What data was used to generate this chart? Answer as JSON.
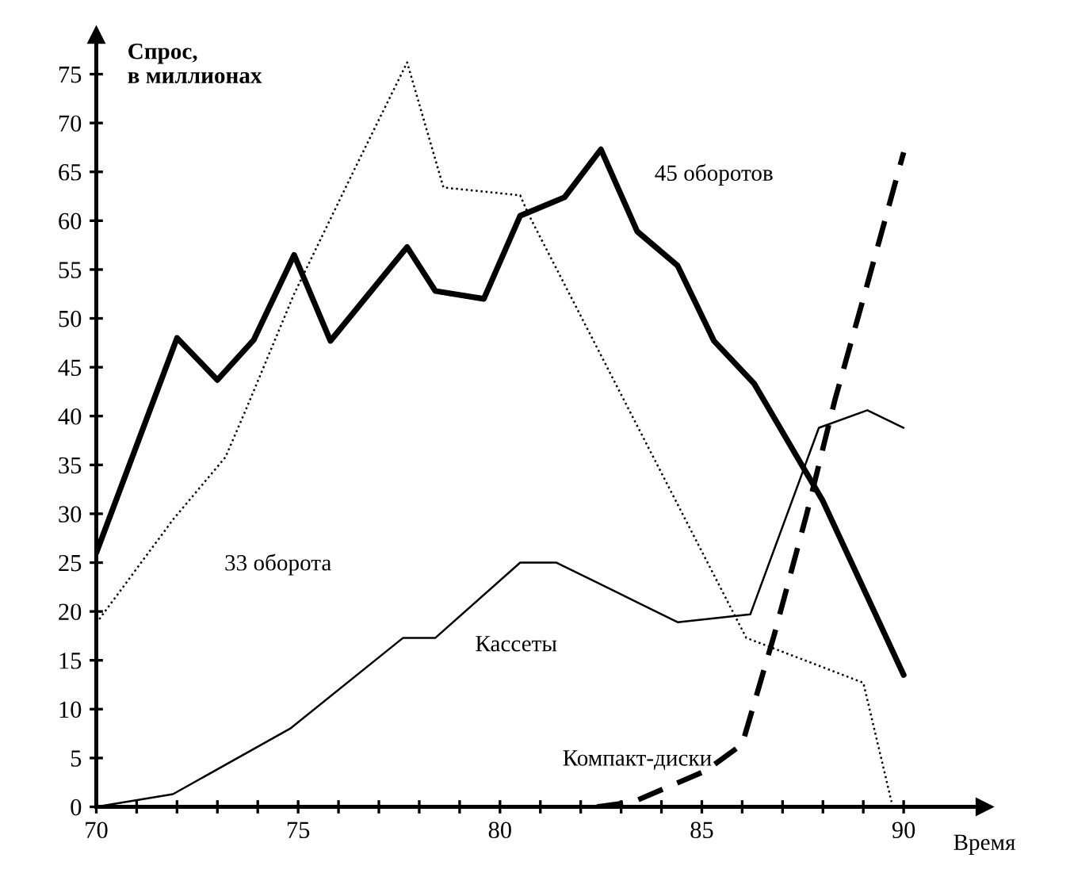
{
  "chart_data": {
    "type": "line",
    "xlabel": "Время",
    "ylabel": "Спрос,\nв миллионах",
    "xlim": [
      70,
      92
    ],
    "ylim": [
      0,
      79
    ],
    "xticks": [
      70,
      {
        "value": 71,
        "label": null
      },
      {
        "value": 72,
        "label": null
      },
      {
        "value": 73,
        "label": null
      },
      {
        "value": 74,
        "label": null
      },
      75,
      {
        "value": 76,
        "label": null
      },
      {
        "value": 77,
        "label": null
      },
      {
        "value": 78,
        "label": null
      },
      {
        "value": 79,
        "label": null
      },
      80,
      {
        "value": 81,
        "label": null
      },
      {
        "value": 82,
        "label": null
      },
      {
        "value": 83,
        "label": null
      },
      {
        "value": 84,
        "label": null
      },
      85,
      {
        "value": 86,
        "label": null
      },
      {
        "value": 87,
        "label": null
      },
      {
        "value": 88,
        "label": null
      },
      {
        "value": 89,
        "label": null
      },
      90
    ],
    "yticks": [
      0,
      5,
      10,
      15,
      20,
      25,
      30,
      35,
      40,
      45,
      50,
      55,
      60,
      65,
      70,
      75
    ],
    "grid": false,
    "legend": false,
    "marker": "none",
    "series": [
      {
        "name": "45 оборотов",
        "color": "#000000",
        "line_style": "solid",
        "x": [
          70,
          72,
          73,
          73.9,
          74.9,
          75.8,
          77.7,
          78.4,
          79.6,
          80.5,
          81.6,
          82.5,
          83.4,
          84.4,
          85.3,
          86.3,
          88,
          90
        ],
        "values": [
          26,
          48,
          43.7,
          47.8,
          56.5,
          47.7,
          57.3,
          52.8,
          52,
          60.5,
          62.4,
          67.3,
          58.9,
          55.4,
          47.7,
          43.3,
          31.3,
          13.5
        ]
      },
      {
        "name": "33 оборота",
        "color": "#000000",
        "line_style": "dotted",
        "x": [
          70,
          71.9,
          73.2,
          73.7,
          74.9,
          76.4,
          77.7,
          78.6,
          80.5,
          80.7,
          86.1,
          89,
          89.7
        ],
        "values": [
          18.8,
          29.4,
          35.8,
          40.6,
          52.5,
          65.3,
          76.2,
          63.4,
          62.6,
          60.7,
          17.3,
          12.7,
          0.5
        ]
      },
      {
        "name": "Кассеты",
        "color": "#000000",
        "line_style": "solid",
        "x": [
          70,
          71.9,
          74.8,
          77.6,
          78.4,
          80.5,
          81.4,
          84.4,
          86.2,
          87.9,
          89.1,
          90
        ],
        "values": [
          0,
          1.3,
          8,
          17.3,
          17.3,
          25,
          25,
          18.9,
          19.7,
          38.8,
          40.6,
          38.8
        ]
      },
      {
        "name": "Компакт-диски",
        "color": "#000000",
        "line_style": "dashed",
        "x": [
          82.4,
          83.3,
          85.1,
          86,
          86.8,
          87.6,
          88.3,
          89.1,
          90
        ],
        "values": [
          0,
          0.5,
          3.7,
          6.4,
          17.7,
          30,
          41.7,
          53.5,
          67
        ]
      }
    ]
  }
}
